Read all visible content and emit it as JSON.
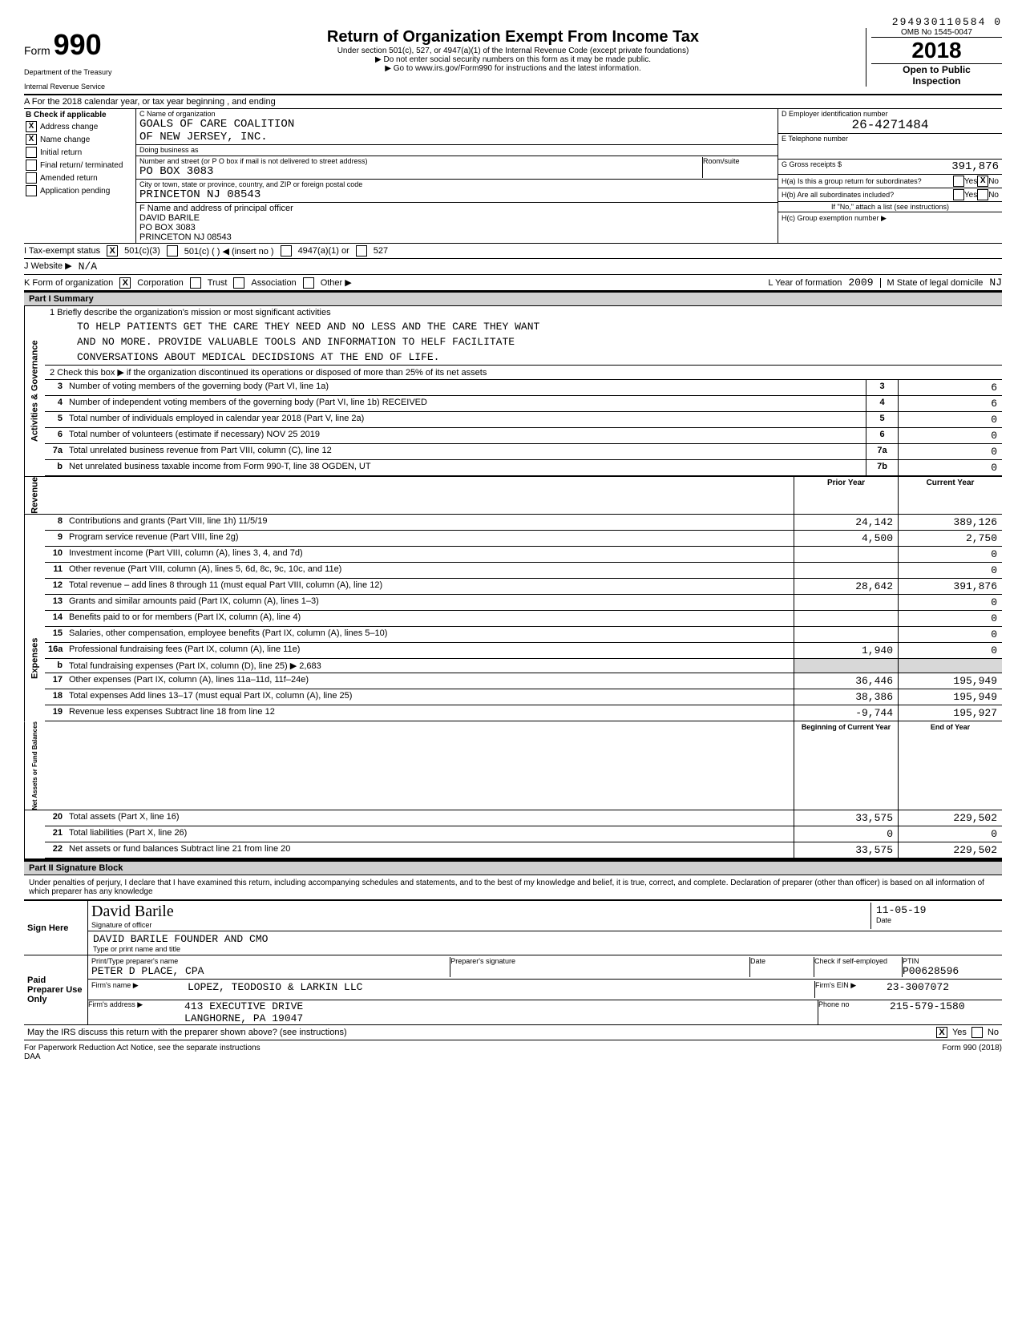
{
  "doc_number": "294930110584 0",
  "header": {
    "form": "Form",
    "form_num": "990",
    "dept1": "Department of the Treasury",
    "dept2": "Internal Revenue Service",
    "title": "Return of Organization Exempt From Income Tax",
    "sub1": "Under section 501(c), 527, or 4947(a)(1) of the Internal Revenue Code (except private foundations)",
    "sub2": "▶ Do not enter social security numbers on this form as it may be made public.",
    "sub3": "▶ Go to www.irs.gov/Form990 for instructions and the latest information.",
    "omb": "OMB No 1545-0047",
    "year": "2018",
    "open1": "Open to Public",
    "open2": "Inspection"
  },
  "rowA": "A   For the 2018 calendar year, or tax year beginning                          , and ending",
  "colB": {
    "head": "B  Check if applicable",
    "addr_change": "Address change",
    "addr_change_x": "X",
    "name_change": "Name change",
    "name_change_x": "X",
    "initial": "Initial return",
    "final": "Final return/ terminated",
    "amended": "Amended return",
    "app_pending": "Application pending"
  },
  "colC": {
    "name_label": "C  Name of organization",
    "name1": "GOALS OF CARE COALITION",
    "name2": "OF NEW JERSEY, INC.",
    "dba_label": "Doing business as",
    "addr_label": "Number and street (or P O box if mail is not delivered to street address)",
    "addr": "PO BOX 3083",
    "room_label": "Room/suite",
    "city_label": "City or town, state or province, country, and ZIP or foreign postal code",
    "city": "PRINCETON           NJ  08543",
    "officer_label": "F  Name and address of principal officer",
    "officer1": "DAVID BARILE",
    "officer2": "PO BOX 3083",
    "officer3": "PRINCETON              NJ  08543"
  },
  "colD": {
    "ein_label": "D Employer identification number",
    "ein": "26-4271484",
    "tel_label": "E Telephone number",
    "gross_label": "G Gross receipts $",
    "gross": "391,876"
  },
  "colH": {
    "ha": "H(a) Is this a group return for subordinates?",
    "ha_yes": "Yes",
    "ha_no": "No",
    "ha_no_x": "X",
    "hb": "H(b) Are all subordinates included?",
    "hb_yes": "Yes",
    "hb_no": "No",
    "hb_note": "If \"No,\" attach a list (see instructions)",
    "hc": "H(c) Group exemption number ▶"
  },
  "rowI": {
    "label": "I      Tax-exempt status",
    "c3_x": "X",
    "c3": "501(c)(3)",
    "c": "501(c)  (        ) ◀ (insert no )",
    "a1": "4947(a)(1) or",
    "s527": "527"
  },
  "rowJ": {
    "label": "J      Website ▶",
    "val": "N/A"
  },
  "rowK": {
    "label": "K     Form of organization",
    "corp_x": "X",
    "corp": "Corporation",
    "trust": "Trust",
    "assoc": "Association",
    "other": "Other ▶",
    "yof_label": "L   Year of formation",
    "yof": "2009",
    "state_label": "M   State of legal domicile",
    "state": "NJ"
  },
  "part1": {
    "head": "Part I     Summary",
    "mission_label": "1   Briefly describe the organization's mission or most significant activities",
    "mission1": "TO HELP PATIENTS GET THE CARE THEY NEED AND NO LESS AND THE CARE THEY WANT",
    "mission2": "AND NO MORE. PROVIDE VALUABLE TOOLS AND INFORMATION TO HELF FACILITATE",
    "mission3": "CONVERSATIONS ABOUT MEDICAL DECIDSIONS AT THE END OF LIFE.",
    "line2": "2   Check this box ▶        if the organization discontinued its operations or disposed of more than 25% of its net assets",
    "side_ag": "Activities & Governance",
    "side_rev": "Revenue",
    "side_exp": "Expenses",
    "side_net": "Net Assets or Fund Balances",
    "lines_gov": [
      {
        "n": "3",
        "t": "Number of voting members of the governing body (Part VI, line 1a)",
        "k": "3",
        "v": "6"
      },
      {
        "n": "4",
        "t": "Number of independent voting members of the governing body (Part VI, line 1b)  RECEIVED",
        "k": "4",
        "v": "6"
      },
      {
        "n": "5",
        "t": "Total number of individuals employed in calendar year 2018 (Part V, line 2a)",
        "k": "5",
        "v": "0"
      },
      {
        "n": "6",
        "t": "Total number of volunteers (estimate if necessary)                       NOV 25 2019",
        "k": "6",
        "v": "0"
      },
      {
        "n": "7a",
        "t": "Total unrelated business revenue from Part VIII, column (C), line 12",
        "k": "7a",
        "v": "0"
      },
      {
        "n": "b",
        "t": "Net unrelated business taxable income from Form 990-T, line 38            OGDEN, UT",
        "k": "7b",
        "v": "0"
      }
    ],
    "prior_label": "Prior Year",
    "current_label": "Current Year",
    "lines_rev": [
      {
        "n": "8",
        "t": "Contributions and grants (Part VIII, line 1h)          11/5/19",
        "p": "24,142",
        "c": "389,126"
      },
      {
        "n": "9",
        "t": "Program service revenue (Part VIII, line 2g)",
        "p": "4,500",
        "c": "2,750"
      },
      {
        "n": "10",
        "t": "Investment income (Part VIII, column (A), lines 3, 4, and 7d)",
        "p": "",
        "c": "0"
      },
      {
        "n": "11",
        "t": "Other revenue (Part VIII, column (A), lines 5, 6d, 8c, 9c, 10c, and 11e)",
        "p": "",
        "c": "0"
      },
      {
        "n": "12",
        "t": "Total revenue – add lines 8 through 11 (must equal Part VIII, column (A), line 12)",
        "p": "28,642",
        "c": "391,876"
      }
    ],
    "lines_exp": [
      {
        "n": "13",
        "t": "Grants and similar amounts paid (Part IX, column (A), lines 1–3)",
        "p": "",
        "c": "0"
      },
      {
        "n": "14",
        "t": "Benefits paid to or for members (Part IX, column (A), line 4)",
        "p": "",
        "c": "0"
      },
      {
        "n": "15",
        "t": "Salaries, other compensation, employee benefits (Part IX, column (A), lines 5–10)",
        "p": "",
        "c": "0"
      },
      {
        "n": "16a",
        "t": "Professional fundraising fees (Part IX, column (A), line 11e)",
        "p": "1,940",
        "c": "0"
      },
      {
        "n": "b",
        "t": "Total fundraising expenses (Part IX, column (D), line 25) ▶                2,683",
        "p": "",
        "c": "",
        "shade": true
      },
      {
        "n": "17",
        "t": "Other expenses (Part IX, column (A), lines 11a–11d, 11f–24e)",
        "p": "36,446",
        "c": "195,949"
      },
      {
        "n": "18",
        "t": "Total expenses  Add lines 13–17 (must equal Part IX, column (A), line 25)",
        "p": "38,386",
        "c": "195,949"
      },
      {
        "n": "19",
        "t": "Revenue less expenses  Subtract line 18 from line 12",
        "p": "-9,744",
        "c": "195,927"
      }
    ],
    "boy_label": "Beginning of Current Year",
    "eoy_label": "End of Year",
    "lines_net": [
      {
        "n": "20",
        "t": "Total assets (Part X, line 16)",
        "p": "33,575",
        "c": "229,502"
      },
      {
        "n": "21",
        "t": "Total liabilities (Part X, line 26)",
        "p": "0",
        "c": "0"
      },
      {
        "n": "22",
        "t": "Net assets or fund balances  Subtract line 21 from line 20",
        "p": "33,575",
        "c": "229,502"
      }
    ]
  },
  "part2": {
    "head": "Part II     Signature Block",
    "perjury": "Under penalties of perjury, I declare that I have examined this return, including accompanying schedules and statements, and to the best of my knowledge and belief, it is true, correct, and complete. Declaration of preparer (other than officer) is based on all information of which preparer has any knowledge",
    "sign_here": "Sign Here",
    "sig_cursive": "David Barile",
    "sig_label": "Signature of officer",
    "date_label": "Date",
    "date_val": "11-05-19",
    "name_title": "DAVID BARILE                                   FOUNDER AND CMO",
    "name_title_label": "Type or print name and title",
    "paid": "Paid Preparer Use Only",
    "prep_name_label": "Print/Type preparer's name",
    "prep_name": "PETER D  PLACE, CPA",
    "prep_sig_label": "Preparer's signature",
    "prep_date_label": "Date",
    "check_label": "Check         if self-employed",
    "ptin_label": "PTIN",
    "ptin": "P00628596",
    "firm_name_label": "Firm's name    ▶",
    "firm_name": "LOPEZ, TEODOSIO & LARKIN LLC",
    "firm_ein_label": "Firm's EIN ▶",
    "firm_ein": "23-3007072",
    "firm_addr_label": "Firm's address  ▶",
    "firm_addr1": "413 EXECUTIVE DRIVE",
    "firm_addr2": "LANGHORNE, PA  19047",
    "phone_label": "Phone no",
    "phone": "215-579-1580",
    "discuss": "May the IRS discuss this return with the preparer shown above? (see instructions)",
    "discuss_yes": "Yes",
    "discuss_yes_x": "X",
    "discuss_no": "No"
  },
  "footer": {
    "left": "For Paperwork Reduction Act Notice, see the separate instructions",
    "daa": "DAA",
    "right": "Form 990 (2018)"
  }
}
